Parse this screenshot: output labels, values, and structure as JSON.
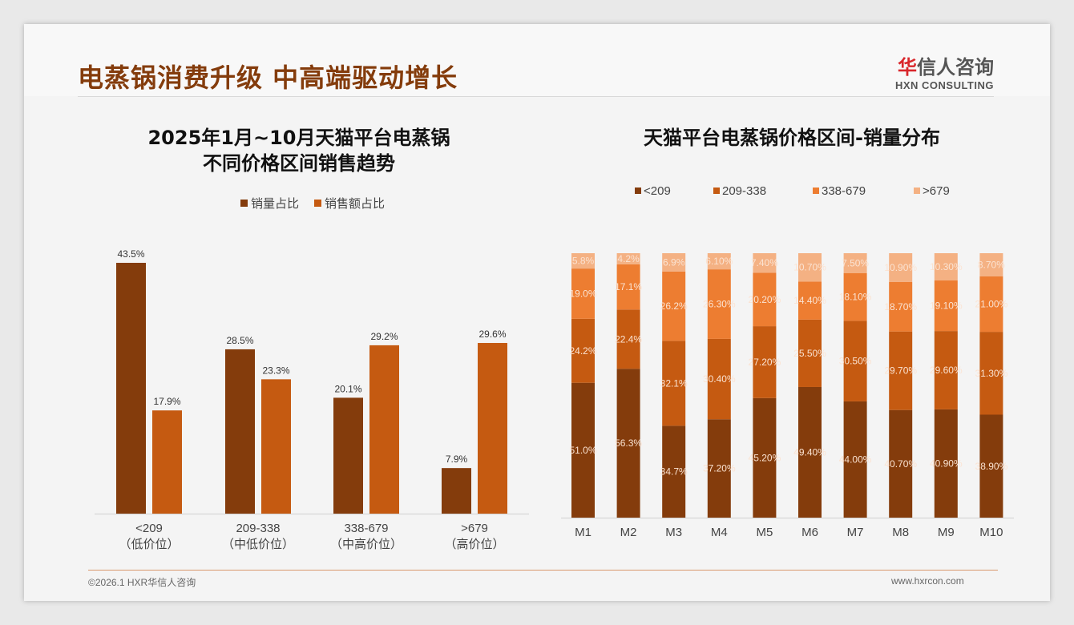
{
  "header": {
    "title": "电蒸锅消费升级 中高端驱动增长",
    "logo_cn_first": "华",
    "logo_cn_rest": "信人咨询",
    "logo_en": "HXN CONSULTING"
  },
  "footer": {
    "copyright": "©2026.1 HXR华信人咨询",
    "url": "www.hxrcon.com"
  },
  "colors": {
    "dark": "#843c0c",
    "orange": "#c55a11",
    "light": "#ed7d31",
    "lightest": "#f4b183"
  },
  "chart_data": [
    {
      "type": "bar",
      "title_line1": "2025年1月~10月天猫平台电蒸锅",
      "title_line2": "不同价格区间销售趋势",
      "categories": [
        "<209",
        "209-338",
        "338-679",
        ">679"
      ],
      "category_sub": [
        "（低价位）",
        "（中低价位）",
        "（中高价位）",
        "（高价位）"
      ],
      "series": [
        {
          "name": "销量占比",
          "values": [
            43.5,
            28.5,
            20.1,
            7.9
          ],
          "labels": [
            "43.5%",
            "28.5%",
            "20.1%",
            "7.9%"
          ]
        },
        {
          "name": "销售额占比",
          "values": [
            17.9,
            23.3,
            29.2,
            29.6
          ],
          "labels": [
            "17.9%",
            "23.3%",
            "29.2%",
            "29.6%"
          ]
        }
      ],
      "legend": "top",
      "ylim": [
        0,
        45
      ]
    },
    {
      "type": "bar",
      "stacked": true,
      "title": "天猫平台电蒸锅价格区间-销量分布",
      "categories": [
        "M1",
        "M2",
        "M3",
        "M4",
        "M5",
        "M6",
        "M7",
        "M8",
        "M9",
        "M10"
      ],
      "series": [
        {
          "name": "<209",
          "values": [
            51.0,
            56.3,
            34.7,
            37.2,
            45.2,
            49.4,
            44.0,
            40.7,
            40.9,
            38.9
          ],
          "labels": [
            "51.0%",
            "56.3%",
            "34.7%",
            "37.20%",
            "45.20%",
            "49.40%",
            "44.00%",
            "40.70%",
            "40.90%",
            "38.90%"
          ]
        },
        {
          "name": "209-338",
          "values": [
            24.2,
            22.4,
            32.1,
            30.4,
            27.2,
            25.5,
            30.5,
            29.7,
            29.6,
            31.3
          ],
          "labels": [
            "24.2%",
            "22.4%",
            "32.1%",
            "30.40%",
            "27.20%",
            "25.50%",
            "30.50%",
            "29.70%",
            "29.60%",
            "31.30%"
          ]
        },
        {
          "name": "338-679",
          "values": [
            19.0,
            17.1,
            26.2,
            26.3,
            20.2,
            14.4,
            18.1,
            18.7,
            19.1,
            21.0
          ],
          "labels": [
            "19.0%",
            "17.1%",
            "26.2%",
            "26.30%",
            "20.20%",
            "14.40%",
            "18.10%",
            "18.70%",
            "19.10%",
            "21.00%"
          ]
        },
        {
          "name": ">679",
          "values": [
            5.8,
            4.2,
            6.9,
            6.1,
            7.4,
            10.7,
            7.5,
            10.9,
            10.3,
            8.7
          ],
          "labels": [
            "5.8%",
            "4.2%",
            "6.9%",
            "6.10%",
            "7.40%",
            "10.70%",
            "7.50%",
            "10.90%",
            "10.30%",
            "8.70%"
          ]
        }
      ],
      "legend": "top",
      "ylim": [
        0,
        100
      ]
    }
  ]
}
